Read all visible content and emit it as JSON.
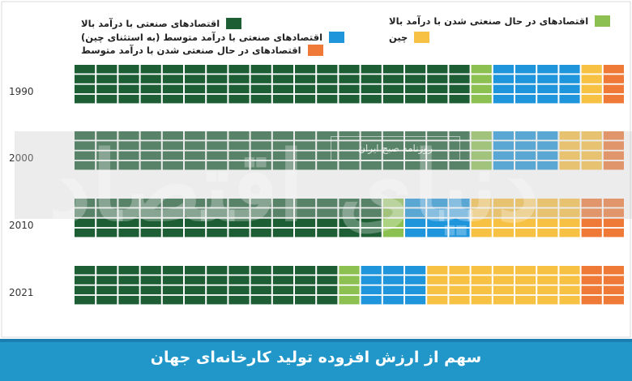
{
  "colors": {
    "high_income_industrial": "#1e5e35",
    "industrializing_high_income": "#8cc152",
    "middle_income_industrial_excl_china": "#1f95db",
    "china": "#f7c143",
    "industrializing_middle_income": "#ef7a38"
  },
  "legend": {
    "high_income_industrial": "اقتصادهای صنعتی با درآمد بالا",
    "industrializing_high_income": "اقتصادهای در حال صنعتی شدن با درآمد بالا",
    "middle_income_industrial_excl_china": "اقتصادهای صنعتی با درآمد متوسط (به استثنای چین)",
    "china": "چین",
    "industrializing_middle_income": "اقتصادهای در حال صنعتی شدن با درآمد متوسط"
  },
  "watermark": {
    "main": "دنیای اقتصاد",
    "sub": "روزنامه صبح ایران"
  },
  "footer_title": "سهم از ارزش افزوده تولید کارخانه‌ای جهان",
  "chart_data": {
    "type": "waffle",
    "categories": [
      "1990",
      "2000",
      "2010",
      "2021"
    ],
    "series": [
      {
        "name": "اقتصادهای صنعتی با درآمد بالا",
        "values": [
          72,
          72,
          56,
          48
        ]
      },
      {
        "name": "اقتصادهای در حال صنعتی شدن با درآمد بالا",
        "values": [
          4,
          4,
          4,
          4
        ]
      },
      {
        "name": "اقتصادهای صنعتی با درآمد متوسط (به استثنای چین)",
        "values": [
          16,
          12,
          12,
          12
        ]
      },
      {
        "name": "چین",
        "values": [
          4,
          8,
          20,
          28
        ]
      },
      {
        "name": "اقتصادهای در حال صنعتی شدن با درآمد متوسط",
        "values": [
          4,
          4,
          8,
          8
        ]
      }
    ],
    "grid": "4 rows x 25 columns per year"
  }
}
